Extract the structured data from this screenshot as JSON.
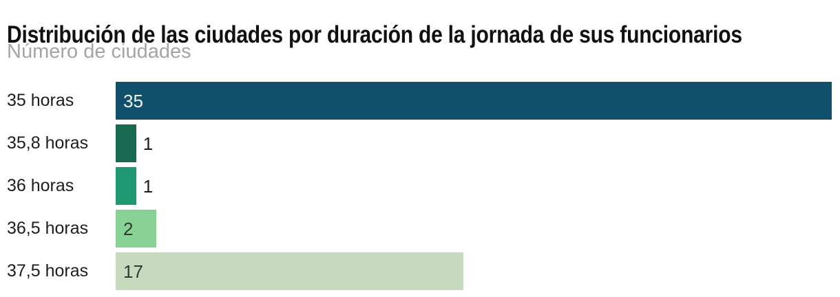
{
  "header": {
    "title": "Distribución de las ciudades por duración de la jornada de sus funcionarios",
    "subtitle": "Número de ciudades"
  },
  "chart_data": {
    "type": "bar",
    "orientation": "horizontal",
    "title": "Distribución de las ciudades por duración de la jornada de sus funcionarios",
    "subtitle": "Número de ciudades",
    "ylabel": "",
    "xlabel": "Número de ciudades",
    "categories": [
      "35 horas",
      "35,8 horas",
      "36 horas",
      "36,5 horas",
      "37,5 horas"
    ],
    "values": [
      35,
      1,
      1,
      2,
      17
    ],
    "bar_colors": [
      "#11506a",
      "#17694f",
      "#1e9871",
      "#87d294",
      "#c6dabe"
    ],
    "value_label_placement": [
      "inside",
      "outside",
      "outside",
      "inside",
      "inside"
    ],
    "value_label_colors": [
      "#f2f4f4",
      "#1d1d1d",
      "#1d1d1d",
      "#2f3a34",
      "#2f3a34"
    ],
    "xlim": [
      0,
      35.4
    ],
    "grid": false,
    "legend": false
  }
}
